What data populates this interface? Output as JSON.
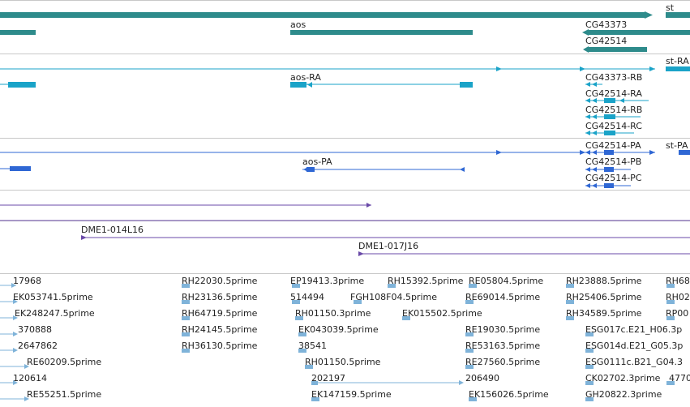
{
  "colors": {
    "gene": "#2e8b8b",
    "transcript": "#1aa3c8",
    "protein": "#2f67d4",
    "clone": "#6a4aa8",
    "est": "#7fb3d9",
    "separator": "#c8c8c8"
  },
  "gene_track": {
    "labels": {
      "st": "st",
      "aos": "aos",
      "cg43373": "CG43373",
      "cg42514": "CG42514"
    }
  },
  "transcript_track": {
    "labels": {
      "st_ra": "st-RA",
      "aos_ra": "aos-RA",
      "cg43373_rb": "CG43373-RB",
      "cg42514_ra": "CG42514-RA",
      "cg42514_rb": "CG42514-RB",
      "cg42514_rc": "CG42514-RC"
    }
  },
  "protein_track": {
    "labels": {
      "st_pa": "st-PA",
      "aos_pa": "aos-PA",
      "cg42514_pa": "CG42514-PA",
      "cg42514_pb": "CG42514-PB",
      "cg42514_pc": "CG42514-PC"
    }
  },
  "clone_track": {
    "labels": {
      "c1": "DME1-014L16",
      "c2": "DME1-017J16"
    }
  },
  "est_track": {
    "labels": [
      "17968",
      "EK053741.5prime",
      "EK248247.5prime",
      "370888",
      "2647862",
      "RE60209.5prime",
      "120614",
      "RE55251.5prime",
      "RH22030.5prime",
      "RH23136.5prime",
      "RH64719.5prime",
      "RH24145.5prime",
      "RH36130.5prime",
      "EP19413.3prime",
      "514494",
      "RH01150.3prime",
      "EK043039.5prime",
      "38541",
      "RH01150.5prime",
      "202197",
      "EK147159.5prime",
      "RH15392.5prime",
      "FGH108F04.5prime",
      "EK015502.5prime",
      "RE05804.5prime",
      "RE69014.5prime",
      "RE19030.5prime",
      "RE53163.5prime",
      "RE27560.5prime",
      "206490",
      "EK156026.5prime",
      "RH23888.5prime",
      "RH25406.5prime",
      "RH34589.5prime",
      "ESG017c.E21_H06.3p",
      "ESG014d.E21_G05.3p",
      "ESG0111c.B21_G04.3",
      "CK02702.3prime",
      "GH20822.3prime",
      "RH68",
      "RH02",
      "RP00",
      "4770"
    ]
  }
}
